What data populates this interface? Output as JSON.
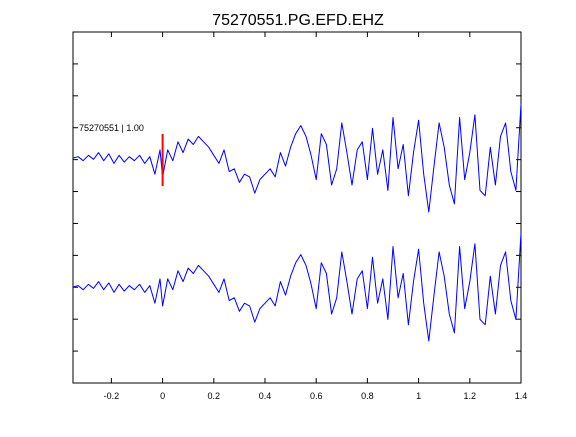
{
  "title": "75270551.PG.EFD.EHZ",
  "colors": {
    "trace": "#0000ff",
    "pick": "#ff0000",
    "axes": "#000000",
    "background": "#ffffff"
  },
  "annotation": "75270551 | 1.00",
  "chart_data": {
    "type": "line",
    "title": "75270551.PG.EFD.EHZ",
    "xlabel": "",
    "ylabel": "",
    "xlim": [
      -0.35,
      1.4
    ],
    "xticks": [
      "-0.2",
      "0",
      "0.2",
      "0.4",
      "0.6",
      "0.8",
      "1",
      "1.2",
      "1.4"
    ],
    "xtick_values": [
      -0.2,
      0,
      0.2,
      0.4,
      0.6,
      0.8,
      1.0,
      1.2,
      1.4
    ],
    "yticks_unlabeled": 10,
    "grid": false,
    "pick_time": 0.0,
    "series": [
      {
        "role": "upper-trace",
        "x": [
          -0.35,
          -0.33,
          -0.31,
          -0.29,
          -0.27,
          -0.25,
          -0.23,
          -0.21,
          -0.19,
          -0.17,
          -0.15,
          -0.13,
          -0.11,
          -0.09,
          -0.07,
          -0.05,
          -0.03,
          -0.01,
          0.0,
          0.02,
          0.04,
          0.06,
          0.08,
          0.1,
          0.12,
          0.14,
          0.16,
          0.18,
          0.2,
          0.22,
          0.24,
          0.26,
          0.28,
          0.3,
          0.32,
          0.34,
          0.36,
          0.38,
          0.4,
          0.42,
          0.44,
          0.46,
          0.48,
          0.5,
          0.52,
          0.54,
          0.56,
          0.58,
          0.6,
          0.62,
          0.64,
          0.66,
          0.68,
          0.7,
          0.72,
          0.74,
          0.76,
          0.78,
          0.8,
          0.82,
          0.84,
          0.86,
          0.88,
          0.9,
          0.92,
          0.94,
          0.96,
          0.98,
          1.0,
          1.02,
          1.04,
          1.06,
          1.08,
          1.1,
          1.12,
          1.14,
          1.16,
          1.18,
          1.2,
          1.22,
          1.24,
          1.26,
          1.28,
          1.3,
          1.32,
          1.34,
          1.36,
          1.38,
          1.4
        ],
        "y": [
          0.0,
          0.05,
          -0.1,
          0.1,
          -0.05,
          0.2,
          -0.1,
          0.15,
          -0.2,
          0.1,
          -0.15,
          0.05,
          -0.1,
          0.1,
          -0.2,
          0.05,
          -0.6,
          0.3,
          -0.7,
          0.3,
          -0.1,
          0.6,
          0.2,
          0.7,
          0.5,
          0.8,
          0.6,
          0.4,
          0.1,
          -0.2,
          0.3,
          -0.5,
          -0.4,
          -0.9,
          -0.6,
          -0.7,
          -1.3,
          -0.8,
          -0.6,
          -0.4,
          -0.7,
          0.2,
          -0.3,
          0.4,
          0.9,
          1.2,
          0.8,
          0.1,
          -0.8,
          0.9,
          0.5,
          -1.0,
          -0.4,
          1.3,
          0.2,
          -1.0,
          0.3,
          0.6,
          -0.8,
          1.1,
          -0.6,
          0.3,
          -1.2,
          1.5,
          -0.4,
          0.5,
          -1.4,
          0.2,
          1.4,
          -0.6,
          -2.0,
          -0.3,
          1.3,
          0.4,
          -1.0,
          -1.7,
          1.5,
          -0.8,
          0.2,
          1.6,
          -1.2,
          -1.4,
          0.4,
          -1.0,
          0.8,
          1.3,
          -0.5,
          -1.2,
          2.0
        ]
      },
      {
        "role": "lower-trace",
        "x": [
          -0.35,
          -0.33,
          -0.31,
          -0.29,
          -0.27,
          -0.25,
          -0.23,
          -0.21,
          -0.19,
          -0.17,
          -0.15,
          -0.13,
          -0.11,
          -0.09,
          -0.07,
          -0.05,
          -0.03,
          -0.01,
          0.0,
          0.02,
          0.04,
          0.06,
          0.08,
          0.1,
          0.12,
          0.14,
          0.16,
          0.18,
          0.2,
          0.22,
          0.24,
          0.26,
          0.28,
          0.3,
          0.32,
          0.34,
          0.36,
          0.38,
          0.4,
          0.42,
          0.44,
          0.46,
          0.48,
          0.5,
          0.52,
          0.54,
          0.56,
          0.58,
          0.6,
          0.62,
          0.64,
          0.66,
          0.68,
          0.7,
          0.72,
          0.74,
          0.76,
          0.78,
          0.8,
          0.82,
          0.84,
          0.86,
          0.88,
          0.9,
          0.92,
          0.94,
          0.96,
          0.98,
          1.0,
          1.02,
          1.04,
          1.06,
          1.08,
          1.1,
          1.12,
          1.14,
          1.16,
          1.18,
          1.2,
          1.22,
          1.24,
          1.26,
          1.28,
          1.3,
          1.32,
          1.34,
          1.36,
          1.38,
          1.4
        ],
        "y": [
          0.0,
          0.05,
          -0.1,
          0.1,
          -0.05,
          0.2,
          -0.1,
          0.15,
          -0.2,
          0.1,
          -0.15,
          0.05,
          -0.1,
          0.1,
          -0.2,
          0.05,
          -0.6,
          0.3,
          -0.7,
          0.3,
          -0.1,
          0.6,
          0.2,
          0.7,
          0.5,
          0.8,
          0.6,
          0.4,
          0.1,
          -0.2,
          0.3,
          -0.5,
          -0.4,
          -0.9,
          -0.6,
          -0.7,
          -1.3,
          -0.8,
          -0.6,
          -0.4,
          -0.7,
          0.2,
          -0.3,
          0.4,
          0.9,
          1.2,
          0.8,
          0.1,
          -0.8,
          0.9,
          0.5,
          -1.0,
          -0.4,
          1.3,
          0.2,
          -1.0,
          0.3,
          0.6,
          -0.8,
          1.1,
          -0.6,
          0.3,
          -1.2,
          1.5,
          -0.4,
          0.5,
          -1.4,
          0.2,
          1.4,
          -0.6,
          -2.0,
          -0.3,
          1.3,
          0.4,
          -1.0,
          -1.7,
          1.5,
          -0.8,
          0.2,
          1.6,
          -1.2,
          -1.4,
          0.4,
          -1.0,
          0.8,
          1.3,
          -0.5,
          -1.2,
          2.0
        ]
      }
    ]
  }
}
